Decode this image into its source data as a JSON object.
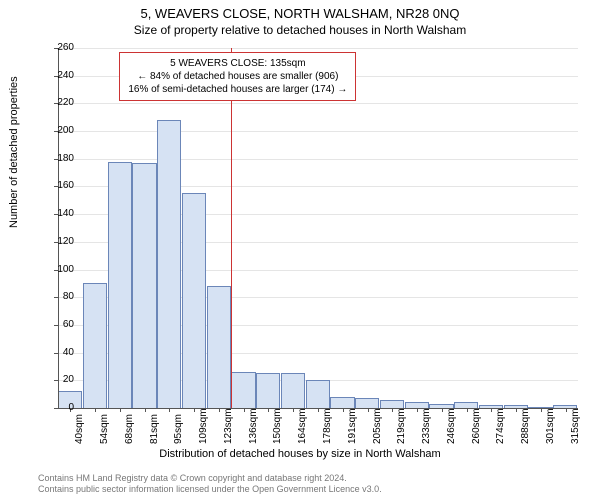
{
  "title": "5, WEAVERS CLOSE, NORTH WALSHAM, NR28 0NQ",
  "subtitle": "Size of property relative to detached houses in North Walsham",
  "chart": {
    "type": "histogram",
    "y_axis_label": "Number of detached properties",
    "x_axis_label": "Distribution of detached houses by size in North Walsham",
    "ylim": [
      0,
      260
    ],
    "ytick_step": 20,
    "yticks": [
      0,
      20,
      40,
      60,
      80,
      100,
      120,
      140,
      160,
      180,
      200,
      220,
      240,
      260
    ],
    "xticks": [
      "40sqm",
      "54sqm",
      "68sqm",
      "81sqm",
      "95sqm",
      "109sqm",
      "123sqm",
      "136sqm",
      "150sqm",
      "164sqm",
      "178sqm",
      "191sqm",
      "205sqm",
      "219sqm",
      "233sqm",
      "246sqm",
      "260sqm",
      "274sqm",
      "288sqm",
      "301sqm",
      "315sqm"
    ],
    "bars": [
      12,
      90,
      178,
      177,
      208,
      155,
      88,
      26,
      25,
      25,
      20,
      8,
      7,
      6,
      4,
      3,
      4,
      2,
      2,
      1,
      2
    ],
    "bar_color": "#d6e2f3",
    "bar_border_color": "#6b86b8",
    "grid_color": "#e5e5e5",
    "axis_color": "#555555",
    "marker_x_index": 7,
    "marker_color": "#cc3333",
    "background_color": "#ffffff"
  },
  "annotation": {
    "lines": [
      "5 WEAVERS CLOSE: 135sqm",
      "← 84% of detached houses are smaller (906)",
      "16% of semi-detached houses are larger (174) →"
    ],
    "border_color": "#cc3333"
  },
  "footer": {
    "line1": "Contains HM Land Registry data © Crown copyright and database right 2024.",
    "line2": "Contains public sector information licensed under the Open Government Licence v3.0."
  }
}
